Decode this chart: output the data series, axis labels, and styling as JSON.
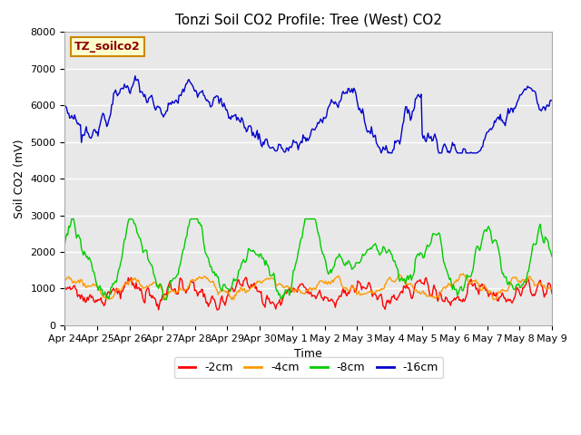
{
  "title": "Tonzi Soil CO2 Profile: Tree (West) CO2",
  "ylabel": "Soil CO2 (mV)",
  "xlabel": "Time",
  "legend_label": "TZ_soilco2",
  "series_labels": [
    "-2cm",
    "-4cm",
    "-8cm",
    "-16cm"
  ],
  "series_colors": [
    "#ff0000",
    "#ff9900",
    "#00cc00",
    "#0000cc"
  ],
  "ylim": [
    0,
    8000
  ],
  "plot_bg_color": "#e8e8e8",
  "fig_bg_color": "#ffffff",
  "n_points": 500,
  "x_ticks": [
    "Apr 24",
    "Apr 25",
    "Apr 26",
    "Apr 27",
    "Apr 28",
    "Apr 29",
    "Apr 30",
    "May 1",
    "May 2",
    "May 3",
    "May 4",
    "May 5",
    "May 6",
    "May 7",
    "May 8",
    "May 9"
  ],
  "title_fontsize": 11,
  "label_fontsize": 9,
  "tick_fontsize": 8,
  "grid_color": "#ffffff",
  "legend_box_color": "#ffffcc",
  "legend_box_edge": "#cc8800",
  "legend_text_color": "#8B0000"
}
